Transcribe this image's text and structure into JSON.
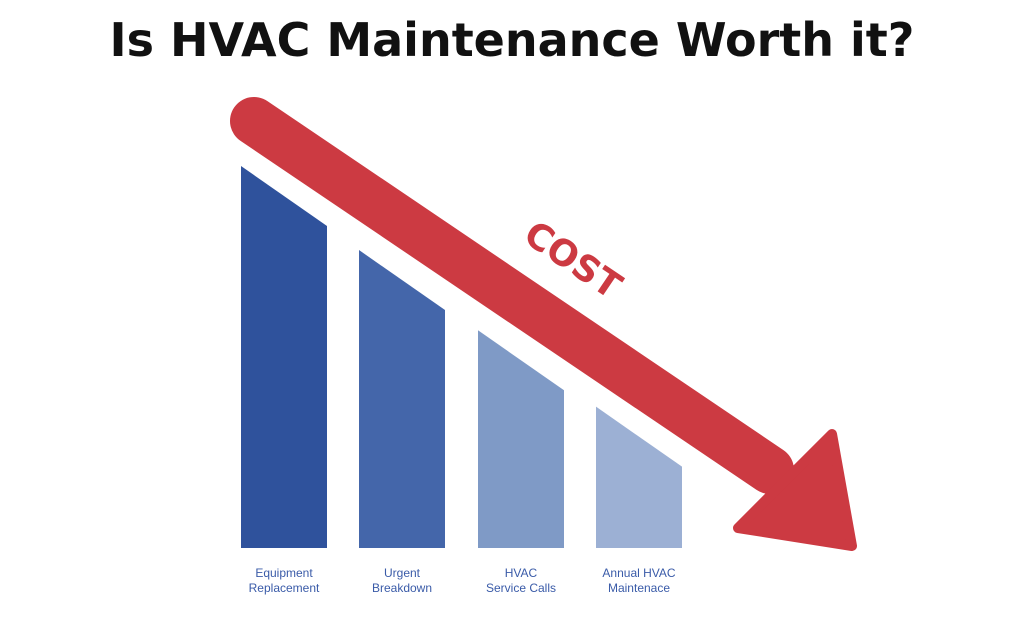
{
  "title": "Is HVAC Maintenance Worth it?",
  "chart_data": {
    "type": "bar",
    "title": "Is HVAC Maintenance Worth it?",
    "categories": [
      [
        "Equipment",
        "Replacement"
      ],
      [
        "Urgent",
        "Breakdown"
      ],
      [
        "HVAC",
        "Service Calls"
      ],
      [
        "Annual HVAC",
        "Maintenace"
      ]
    ],
    "series": [
      {
        "values": [
          100,
          78,
          57,
          37
        ]
      }
    ],
    "bar_colors": [
      "#2f529c",
      "#4466aa",
      "#7f9ac6",
      "#9cb0d4"
    ],
    "trend_arrow": {
      "label": "COST",
      "direction": "down",
      "color": "#cc3a42"
    },
    "label_color": "#3a5ba8",
    "ylim": [
      0,
      100
    ],
    "grid": false
  }
}
